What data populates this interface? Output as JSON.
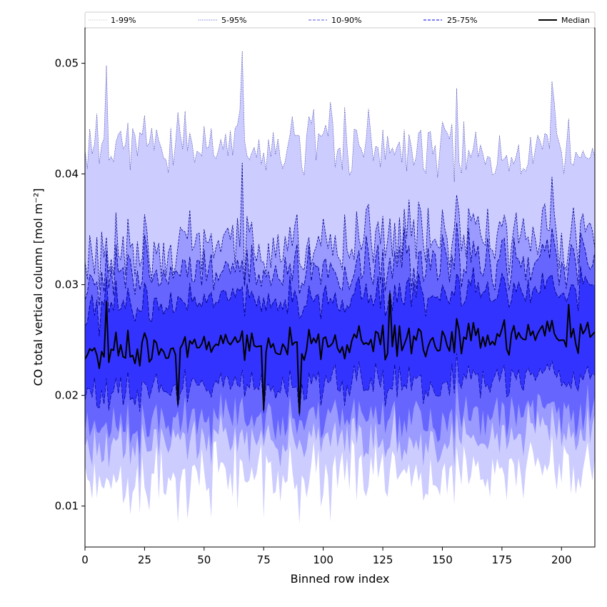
{
  "chart_data": {
    "type": "area",
    "title": "",
    "xlabel": "Binned row index",
    "ylabel": "CO total vertical column [mol m⁻²]",
    "xlim": [
      0,
      214
    ],
    "ylim": [
      0.0063,
      0.0532
    ],
    "x_ticks": [
      0,
      25,
      50,
      75,
      100,
      125,
      150,
      175,
      200
    ],
    "y_ticks": [
      0.01,
      0.02,
      0.03,
      0.04,
      0.05
    ],
    "y_tick_labels": [
      "0.01",
      "0.02",
      "0.03",
      "0.04",
      "0.05"
    ],
    "n_points": 215,
    "legend_placement": "top, spanning full width",
    "legend": [
      {
        "label": "1-99%",
        "style": "dotted",
        "color": "#cccccc"
      },
      {
        "label": "5-95%",
        "style": "dotted",
        "color": "#7777dd"
      },
      {
        "label": "10-90%",
        "style": "dashed",
        "color": "#7777ee"
      },
      {
        "label": "25-75%",
        "style": "dashed",
        "color": "#3333ee"
      },
      {
        "label": "Median",
        "style": "solid",
        "color": "#000000"
      }
    ],
    "colors": {
      "band_1_99": "#ccccff",
      "band_5_95": "#9a9aff",
      "band_10_90": "#6666ff",
      "band_25_75": "#3333ff",
      "median": "#000000",
      "outline": "#00008b"
    },
    "baseline": {
      "p1": 0.0133,
      "p5": 0.0163,
      "p10": 0.0182,
      "p25": 0.0212,
      "p50": 0.0248,
      "p75": 0.0287,
      "p90": 0.0313,
      "p95": 0.0335,
      "p99": 0.0425
    },
    "trend": {
      "x0": 0,
      "x1": 214,
      "p50": [
        0.024,
        0.0255
      ],
      "p99": [
        0.043,
        0.0415
      ]
    },
    "notable_points": [
      {
        "x": 9,
        "p99": 0.0498,
        "p50": 0.0285
      },
      {
        "x": 39,
        "p1": 0.0085,
        "p50": 0.0192
      },
      {
        "x": 66,
        "p99": 0.0511,
        "p95": 0.041
      },
      {
        "x": 75,
        "p50": 0.0187,
        "p1": 0.0089
      },
      {
        "x": 90,
        "p1": 0.0084,
        "p50": 0.0184
      },
      {
        "x": 103,
        "p1": 0.0086,
        "p99": 0.0465
      },
      {
        "x": 128,
        "p50": 0.0292
      },
      {
        "x": 203,
        "p99": 0.045,
        "p50": 0.0282
      }
    ],
    "seed": 20240517
  }
}
